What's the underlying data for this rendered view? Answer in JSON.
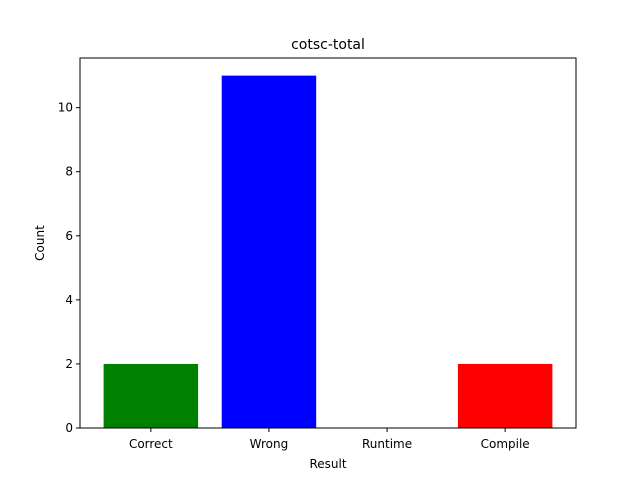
{
  "chart_data": {
    "type": "bar",
    "title": "cotsc-total",
    "xlabel": "Result",
    "ylabel": "Count",
    "categories": [
      "Correct",
      "Wrong",
      "Runtime",
      "Compile"
    ],
    "values": [
      2,
      11,
      0,
      2
    ],
    "colors": [
      "#008000",
      "#0000ff",
      "#ffffff",
      "#ff0000"
    ],
    "ylim": [
      0,
      11.55
    ],
    "yticks": [
      0,
      2,
      4,
      6,
      8,
      10
    ],
    "grid": false
  }
}
